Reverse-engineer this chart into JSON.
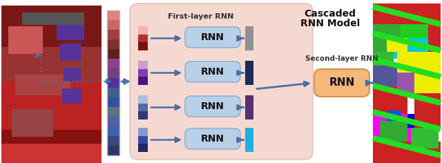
{
  "title": "Cascaded RNN Model",
  "first_layer_label": "First-layer RNN",
  "second_layer_label": "Second-layer RNN",
  "rnn_label": "RNN",
  "fig_bg": "#ffffff",
  "panel_bg": "#f5d9d0",
  "rnn_box_color": "#b8cfe8",
  "rnn_box_edge": "#8aaac8",
  "second_rnn_box_color": "#f5b87a",
  "second_rnn_box_edge": "#d4924a",
  "arrow_color": "#4a6fa5",
  "title_bg": "#e8e0c0",
  "input_bar_colors_1": [
    "#f0a0a0",
    "#8b2020",
    "#6b1515"
  ],
  "input_bar_colors_2": [
    "#c0a0c8",
    "#7040a0",
    "#501060"
  ],
  "input_bar_colors_3": [
    "#a0b8d0",
    "#5060a0",
    "#304080"
  ],
  "input_bar_colors_4": [
    "#9090c0",
    "#404090",
    "#202060"
  ],
  "output_bar_colors": [
    "#909090",
    "#1a2a5a",
    "#5a3070",
    "#20a0d0"
  ],
  "long_bar_colors": [
    "#c08080",
    "#9060a0",
    "#7080b0",
    "#8890c0",
    "#5080c0",
    "#6070b0",
    "#5060a0",
    "#4050a0",
    "#304090",
    "#305080"
  ]
}
